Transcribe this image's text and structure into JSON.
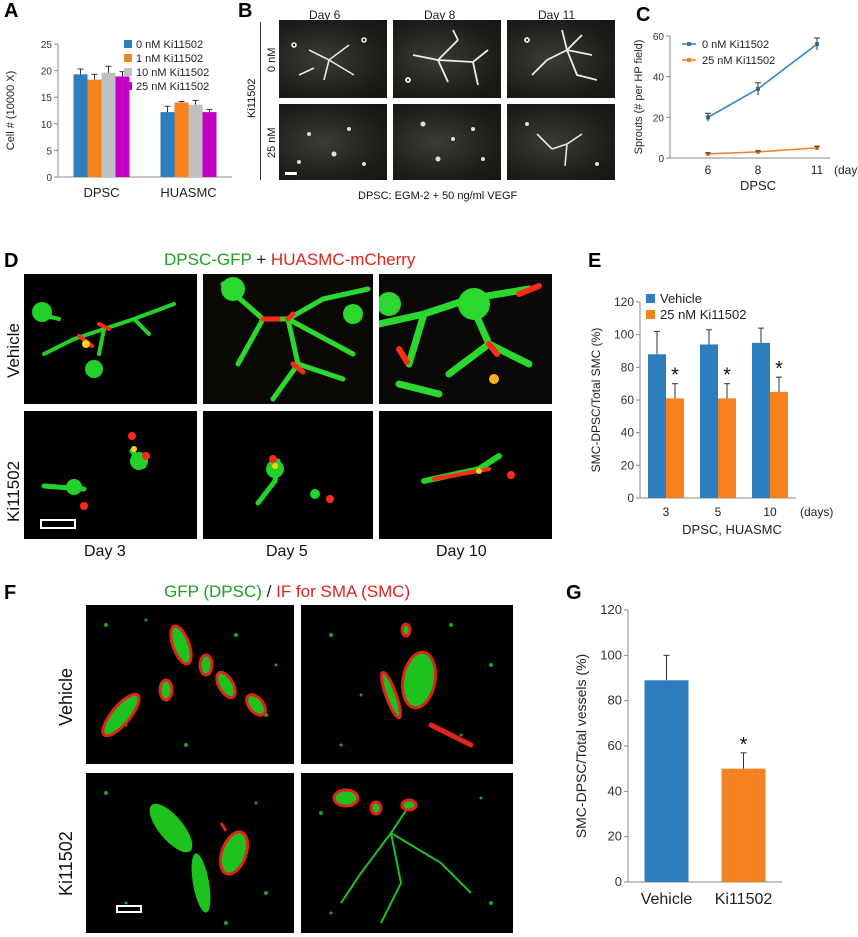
{
  "panels": {
    "A": "A",
    "B": "B",
    "C": "C",
    "D": "D",
    "E": "E",
    "F": "F",
    "G": "G"
  },
  "colors": {
    "blue": "#2e7ebf",
    "orange": "#f5821f",
    "red": "#e0443a",
    "grey": "#c0c0c0",
    "magenta": "#c400c4",
    "green": "#1fa11f",
    "redtitle": "#e0231c"
  },
  "panelB": {
    "days": [
      "Day 6",
      "Day 8",
      "Day 11"
    ],
    "row_labels": [
      "0 nM",
      "25 nM"
    ],
    "side_label": "Ki11502",
    "caption": "DPSC: EGM-2 + 50 ng/ml VEGF"
  },
  "panelD": {
    "title_green": "DPSC-GFP",
    "title_plus": " + ",
    "title_red": "HUASMC-mCherry",
    "row_labels": [
      "Vehicle",
      "Ki11502"
    ],
    "days": [
      "Day 3",
      "Day 5",
      "Day 10"
    ]
  },
  "panelF": {
    "title_green": "GFP (DPSC)",
    "title_slash": " / ",
    "title_red": "IF for SMA (SMC)",
    "row_labels": [
      "Vehicle",
      "Ki11502"
    ]
  },
  "chart_data": [
    {
      "panel": "A",
      "type": "bar",
      "categories": [
        "DPSC",
        "HUASMC"
      ],
      "ylabel": "Cell # (10000 X)",
      "ylim": [
        0,
        25
      ],
      "yticks": [
        0,
        5,
        10,
        15,
        20,
        25
      ],
      "legend_position": "top-right",
      "series": [
        {
          "name": "0 nM Ki11502",
          "color": "#2e7ebf",
          "values": [
            19.3,
            12.2
          ],
          "err": [
            1.0,
            1.1
          ]
        },
        {
          "name": "1 nM Ki11502",
          "color": "#f5821f",
          "values": [
            18.3,
            14.0
          ],
          "err": [
            1.0,
            0.2
          ]
        },
        {
          "name": "10 nM Ki11502",
          "color": "#c0c0c0",
          "values": [
            19.6,
            13.6
          ],
          "err": [
            1.2,
            0.8
          ]
        },
        {
          "name": "25 nM Ki11502",
          "color": "#c400c4",
          "values": [
            18.9,
            12.2
          ],
          "err": [
            0.9,
            0.5
          ]
        }
      ]
    },
    {
      "panel": "C",
      "type": "line",
      "x": [
        6,
        8,
        11
      ],
      "xtick_labels": [
        "6",
        "8",
        "11"
      ],
      "xunit": "(days)",
      "xlabel": "DPSC",
      "ylabel": "Sprouts (# per HP field)",
      "ylim": [
        0,
        60
      ],
      "yticks": [
        0,
        20,
        40,
        60
      ],
      "legend_position": "top-left",
      "series": [
        {
          "name": "0 nM Ki11502",
          "color": "#2e7ebf",
          "values": [
            20,
            34,
            56
          ],
          "err": [
            2,
            3,
            3
          ]
        },
        {
          "name": "25 nM Ki11502",
          "color": "#f5821f",
          "values": [
            2,
            3,
            5
          ],
          "err": [
            0.5,
            0.5,
            0.8
          ]
        }
      ]
    },
    {
      "panel": "E",
      "type": "bar",
      "categories": [
        "3",
        "5",
        "10"
      ],
      "xunit": "(days)",
      "xlabel": "DPSC, HUASMC",
      "ylabel": "SMC-DPSC/Total SMC (%)",
      "ylim": [
        0,
        120
      ],
      "yticks": [
        0,
        20,
        40,
        60,
        80,
        100,
        120
      ],
      "legend_position": "top-left",
      "significance": [
        "*",
        "*",
        "*"
      ],
      "series": [
        {
          "name": "Vehicle",
          "color": "#2e7ebf",
          "values": [
            88,
            94,
            95
          ],
          "err": [
            14,
            9,
            9
          ]
        },
        {
          "name": "25 nM Ki11502",
          "color": "#f5821f",
          "values": [
            61,
            61,
            65
          ],
          "err": [
            9,
            9,
            9
          ]
        }
      ]
    },
    {
      "panel": "G",
      "type": "bar",
      "categories": [
        "Vehicle",
        "Ki11502"
      ],
      "ylabel": "SMC-DPSC/Total vessels (%)",
      "ylim": [
        0,
        120
      ],
      "yticks": [
        0,
        20,
        40,
        60,
        80,
        100,
        120
      ],
      "significance": [
        "",
        "*"
      ],
      "series": [
        {
          "name": "",
          "colors": [
            "#2e7ebf",
            "#f5821f"
          ],
          "values": [
            89,
            50
          ],
          "err": [
            11,
            7
          ]
        }
      ]
    }
  ]
}
